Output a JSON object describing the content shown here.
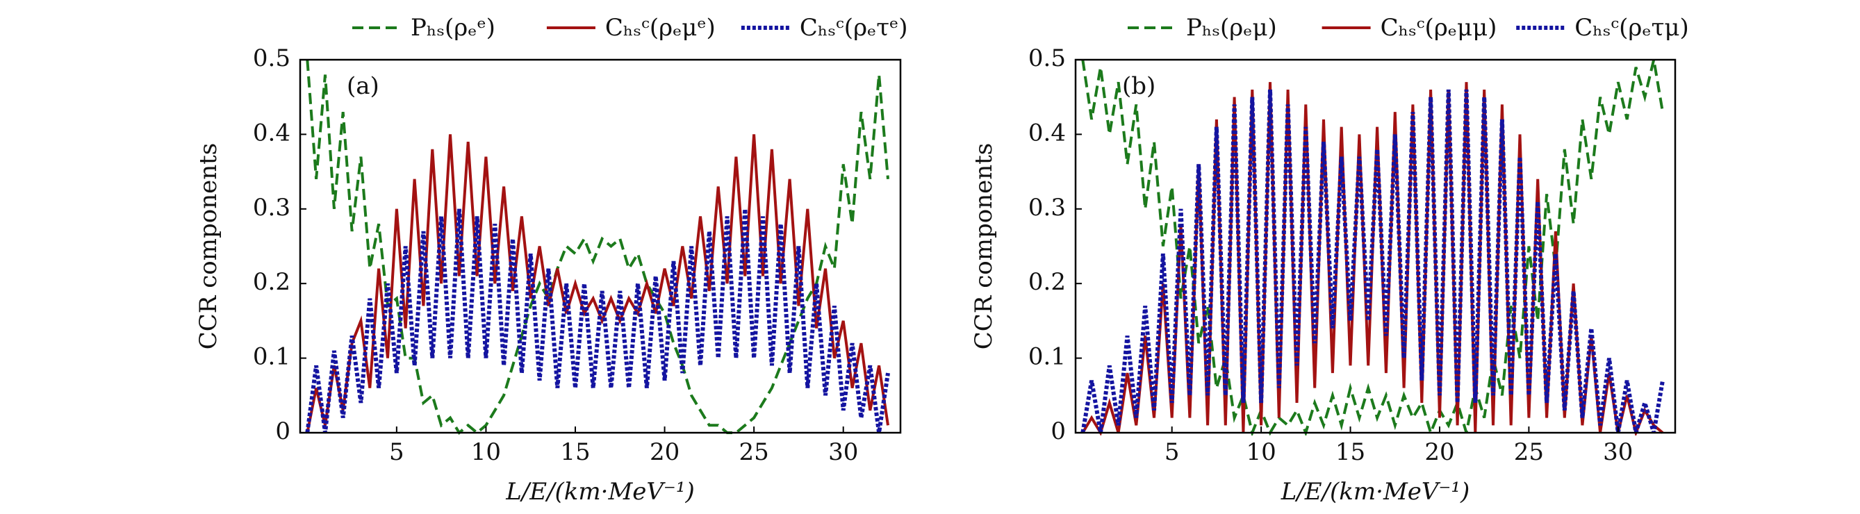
{
  "chart_data": [
    {
      "type": "line",
      "annotation": "(a)",
      "xlabel": "L/E/(km·MeV⁻¹)",
      "ylabel": "CCR components",
      "xlim": [
        -0.4,
        33.2
      ],
      "ylim": [
        0,
        0.5
      ],
      "xticks": [
        5,
        10,
        15,
        20,
        25,
        30
      ],
      "yticks": [
        0,
        0.1,
        0.2,
        0.3,
        0.4,
        0.5
      ],
      "x": [
        0,
        0.5,
        1,
        1.5,
        2,
        2.5,
        3,
        3.5,
        4,
        4.5,
        5,
        5.5,
        6,
        6.5,
        7,
        7.5,
        8,
        8.5,
        9,
        9.5,
        10,
        10.5,
        11,
        11.5,
        12,
        12.5,
        13,
        13.5,
        14,
        14.5,
        15,
        15.5,
        16,
        16.5,
        17,
        17.5,
        18,
        18.5,
        19,
        19.5,
        20,
        20.5,
        21,
        21.5,
        22,
        22.5,
        23,
        23.5,
        24,
        24.5,
        25,
        25.5,
        26,
        26.5,
        27,
        27.5,
        28,
        28.5,
        29,
        29.5,
        30,
        30.5,
        31,
        31.5,
        32,
        32.5
      ],
      "series": [
        {
          "name": "Pₕₛ(ρₑᵉ)",
          "color": "#1c7a1c",
          "dash": "dashed",
          "values": [
            0.5,
            0.34,
            0.48,
            0.3,
            0.43,
            0.27,
            0.37,
            0.22,
            0.28,
            0.17,
            0.18,
            0.1,
            0.1,
            0.04,
            0.05,
            0.01,
            0.02,
            0.0,
            0.01,
            0.0,
            0.01,
            0.03,
            0.05,
            0.09,
            0.13,
            0.17,
            0.2,
            0.18,
            0.22,
            0.25,
            0.24,
            0.26,
            0.23,
            0.26,
            0.25,
            0.26,
            0.22,
            0.24,
            0.2,
            0.18,
            0.16,
            0.12,
            0.09,
            0.05,
            0.03,
            0.01,
            0.01,
            0.0,
            0.0,
            0.01,
            0.02,
            0.04,
            0.06,
            0.09,
            0.12,
            0.15,
            0.18,
            0.2,
            0.25,
            0.22,
            0.36,
            0.28,
            0.43,
            0.34,
            0.48,
            0.34
          ]
        },
        {
          "name": "Cₕₛᶜ(ρₑμᵉ)",
          "color": "#a31212",
          "dash": "solid",
          "values": [
            0.0,
            0.06,
            0.01,
            0.09,
            0.03,
            0.12,
            0.15,
            0.06,
            0.22,
            0.1,
            0.3,
            0.14,
            0.34,
            0.17,
            0.38,
            0.2,
            0.4,
            0.21,
            0.39,
            0.21,
            0.37,
            0.2,
            0.33,
            0.19,
            0.29,
            0.18,
            0.25,
            0.17,
            0.22,
            0.16,
            0.2,
            0.16,
            0.18,
            0.15,
            0.18,
            0.15,
            0.18,
            0.16,
            0.2,
            0.16,
            0.22,
            0.17,
            0.25,
            0.18,
            0.29,
            0.19,
            0.33,
            0.2,
            0.37,
            0.21,
            0.4,
            0.21,
            0.38,
            0.2,
            0.34,
            0.17,
            0.3,
            0.14,
            0.22,
            0.1,
            0.15,
            0.06,
            0.12,
            0.03,
            0.09,
            0.01
          ]
        },
        {
          "name": "Cₕₛᶜ(ρₑτᵉ)",
          "color": "#1414a0",
          "dash": "dotted",
          "values": [
            0.0,
            0.09,
            0.0,
            0.11,
            0.02,
            0.13,
            0.04,
            0.18,
            0.06,
            0.2,
            0.08,
            0.25,
            0.09,
            0.27,
            0.1,
            0.29,
            0.1,
            0.3,
            0.1,
            0.29,
            0.1,
            0.28,
            0.09,
            0.26,
            0.08,
            0.24,
            0.07,
            0.22,
            0.06,
            0.2,
            0.06,
            0.2,
            0.06,
            0.19,
            0.06,
            0.19,
            0.06,
            0.2,
            0.06,
            0.21,
            0.07,
            0.23,
            0.08,
            0.25,
            0.09,
            0.27,
            0.1,
            0.29,
            0.1,
            0.3,
            0.1,
            0.29,
            0.09,
            0.28,
            0.08,
            0.25,
            0.06,
            0.2,
            0.05,
            0.17,
            0.03,
            0.12,
            0.02,
            0.09,
            0.0,
            0.08
          ]
        }
      ]
    },
    {
      "type": "line",
      "annotation": "(b)",
      "xlabel": "L/E/(km·MeV⁻¹)",
      "ylabel": "CCR components",
      "xlim": [
        -0.4,
        33.2
      ],
      "ylim": [
        0,
        0.5
      ],
      "xticks": [
        5,
        10,
        15,
        20,
        25,
        30
      ],
      "yticks": [
        0,
        0.1,
        0.2,
        0.3,
        0.4,
        0.5
      ],
      "x": [
        0,
        0.5,
        1,
        1.5,
        2,
        2.5,
        3,
        3.5,
        4,
        4.5,
        5,
        5.5,
        6,
        6.5,
        7,
        7.5,
        8,
        8.5,
        9,
        9.5,
        10,
        10.5,
        11,
        11.5,
        12,
        12.5,
        13,
        13.5,
        14,
        14.5,
        15,
        15.5,
        16,
        16.5,
        17,
        17.5,
        18,
        18.5,
        19,
        19.5,
        20,
        20.5,
        21,
        21.5,
        22,
        22.5,
        23,
        23.5,
        24,
        24.5,
        25,
        25.5,
        26,
        26.5,
        27,
        27.5,
        28,
        28.5,
        29,
        29.5,
        30,
        30.5,
        31,
        31.5,
        32,
        32.5
      ],
      "series": [
        {
          "name": "Pₕₛ(ρₑμ)",
          "color": "#1c7a1c",
          "dash": "dashed",
          "values": [
            0.5,
            0.42,
            0.49,
            0.4,
            0.47,
            0.36,
            0.44,
            0.3,
            0.39,
            0.25,
            0.33,
            0.18,
            0.25,
            0.12,
            0.17,
            0.06,
            0.1,
            0.02,
            0.05,
            0.0,
            0.03,
            0.0,
            0.02,
            0.01,
            0.03,
            0.0,
            0.04,
            0.01,
            0.05,
            0.01,
            0.06,
            0.02,
            0.06,
            0.02,
            0.05,
            0.01,
            0.05,
            0.02,
            0.04,
            0.0,
            0.03,
            0.01,
            0.04,
            0.0,
            0.06,
            0.02,
            0.1,
            0.05,
            0.17,
            0.1,
            0.25,
            0.15,
            0.32,
            0.22,
            0.38,
            0.28,
            0.42,
            0.34,
            0.45,
            0.4,
            0.47,
            0.42,
            0.49,
            0.45,
            0.5,
            0.43
          ]
        },
        {
          "name": "Cₕₛᶜ(ρₑμμ)",
          "color": "#a31212",
          "dash": "solid",
          "values": [
            0.0,
            0.02,
            0.0,
            0.04,
            0.0,
            0.08,
            0.01,
            0.13,
            0.02,
            0.2,
            0.02,
            0.28,
            0.02,
            0.36,
            0.01,
            0.42,
            0.01,
            0.45,
            0.0,
            0.46,
            0.01,
            0.47,
            0.02,
            0.46,
            0.04,
            0.44,
            0.06,
            0.42,
            0.08,
            0.41,
            0.09,
            0.4,
            0.09,
            0.41,
            0.08,
            0.43,
            0.06,
            0.44,
            0.04,
            0.46,
            0.02,
            0.46,
            0.01,
            0.47,
            0.0,
            0.46,
            0.01,
            0.44,
            0.01,
            0.4,
            0.02,
            0.34,
            0.02,
            0.27,
            0.02,
            0.2,
            0.01,
            0.13,
            0.0,
            0.08,
            0.0,
            0.05,
            0.0,
            0.03,
            0.01,
            0.0
          ]
        },
        {
          "name": "Cₕₛᶜ(ρₑτμ)",
          "color": "#1414a0",
          "dash": "dotted",
          "values": [
            0.0,
            0.07,
            0.0,
            0.09,
            0.01,
            0.13,
            0.02,
            0.17,
            0.03,
            0.24,
            0.04,
            0.3,
            0.05,
            0.36,
            0.05,
            0.41,
            0.05,
            0.44,
            0.04,
            0.45,
            0.04,
            0.46,
            0.06,
            0.44,
            0.09,
            0.41,
            0.12,
            0.39,
            0.14,
            0.37,
            0.15,
            0.37,
            0.15,
            0.38,
            0.13,
            0.4,
            0.1,
            0.43,
            0.07,
            0.45,
            0.05,
            0.46,
            0.04,
            0.46,
            0.04,
            0.45,
            0.05,
            0.42,
            0.05,
            0.37,
            0.05,
            0.31,
            0.04,
            0.24,
            0.03,
            0.19,
            0.02,
            0.14,
            0.01,
            0.1,
            0.0,
            0.07,
            0.0,
            0.04,
            0.0,
            0.07
          ]
        }
      ]
    }
  ]
}
